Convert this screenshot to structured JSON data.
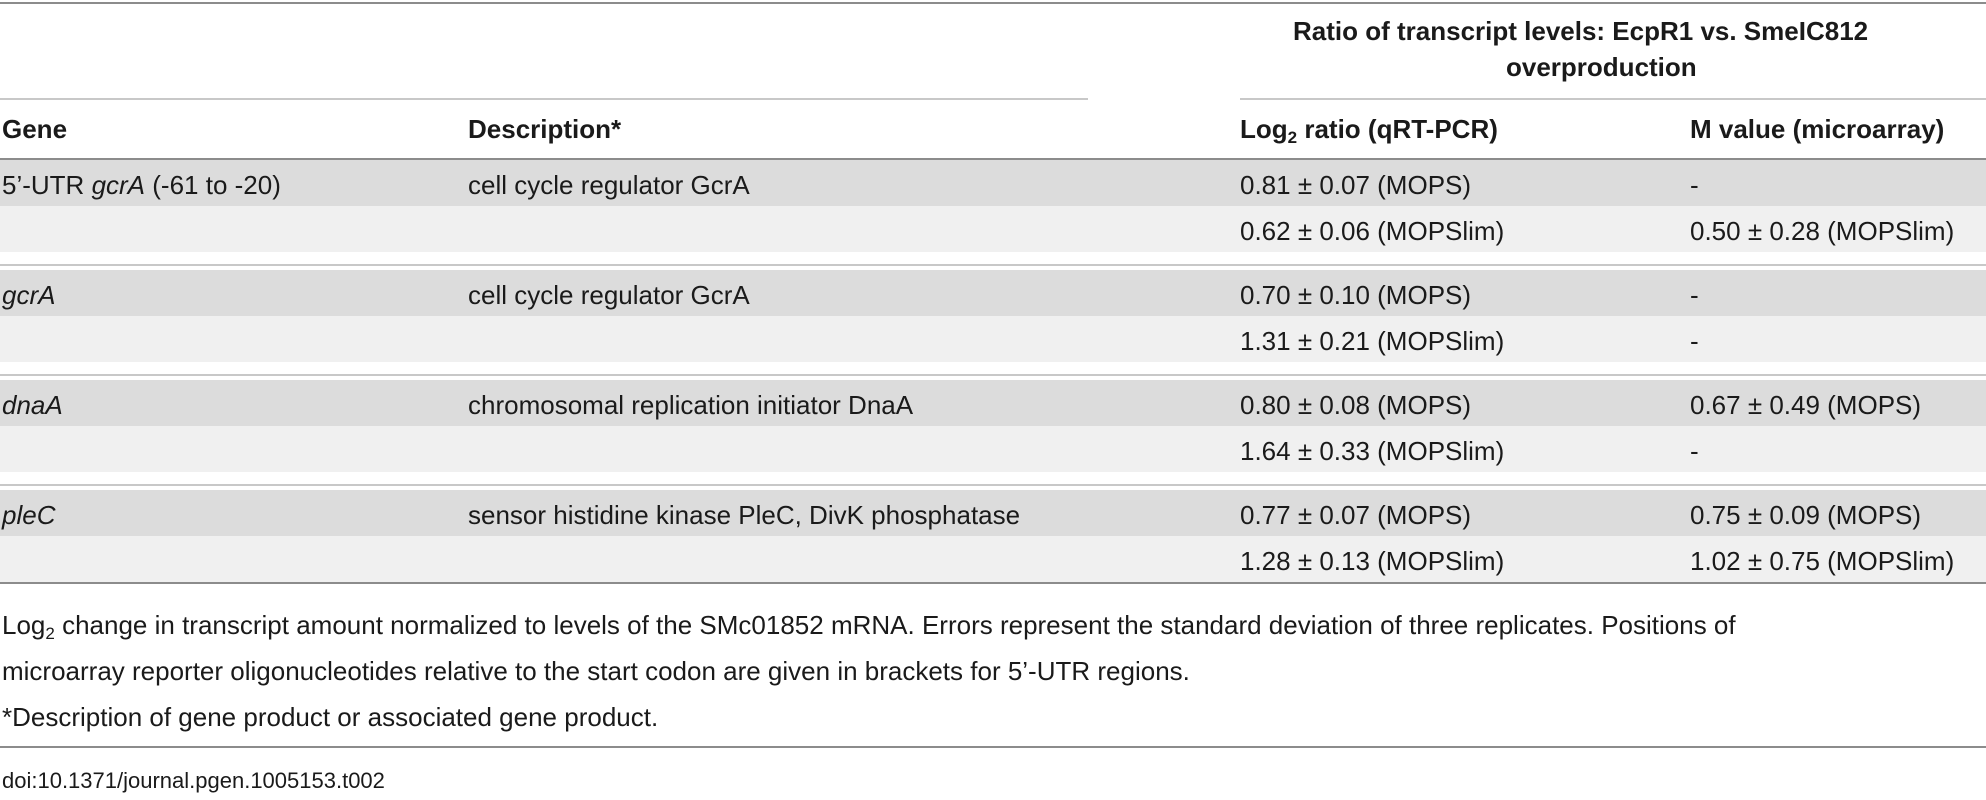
{
  "colors": {
    "band_dark": "#dcdcdc",
    "band_light": "#f0f0f0",
    "rule": "#8c8c8c",
    "text": "#1a1a1a"
  },
  "header": {
    "group_title_line1": "Ratio of transcript levels: EcpR1 vs. SmeIC812",
    "group_title_line2": "overproduction",
    "col_gene": "Gene",
    "col_description": "Description",
    "col_description_mark": "*",
    "col_qrt_prefix": "Log",
    "col_qrt_sub": "2",
    "col_qrt_suffix": " ratio (qRT-PCR)",
    "col_microarray": "M value (microarray)"
  },
  "rows": [
    {
      "gene_prefix": "5’-UTR ",
      "gene_italic": "gcrA",
      "gene_suffix": " (-61 to -20)",
      "description": "cell cycle regulator GcrA",
      "qrt": "0.81 ± 0.07 (MOPS)",
      "micro": "-"
    },
    {
      "gene_prefix": "",
      "gene_italic": "",
      "gene_suffix": "",
      "description": "",
      "qrt": "0.62 ± 0.06 (MOPSlim)",
      "micro": "0.50 ± 0.28 (MOPSlim)"
    },
    {
      "gene_prefix": "",
      "gene_italic": "gcrA",
      "gene_suffix": "",
      "description": "cell cycle regulator GcrA",
      "qrt": "0.70 ± 0.10 (MOPS)",
      "micro": "-"
    },
    {
      "gene_prefix": "",
      "gene_italic": "",
      "gene_suffix": "",
      "description": "",
      "qrt": "1.31 ± 0.21 (MOPSlim)",
      "micro": "-"
    },
    {
      "gene_prefix": "",
      "gene_italic": "dnaA",
      "gene_suffix": "",
      "description": "chromosomal replication initiator DnaA",
      "qrt": "0.80 ± 0.08 (MOPS)",
      "micro": "0.67 ± 0.49 (MOPS)"
    },
    {
      "gene_prefix": "",
      "gene_italic": "",
      "gene_suffix": "",
      "description": "",
      "qrt": "1.64 ± 0.33 (MOPSlim)",
      "micro": "-"
    },
    {
      "gene_prefix": "",
      "gene_italic": "pleC",
      "gene_suffix": "",
      "description": "sensor histidine kinase PleC, DivK phosphatase",
      "qrt": "0.77 ± 0.07 (MOPS)",
      "micro": "0.75 ± 0.09 (MOPS)"
    },
    {
      "gene_prefix": "",
      "gene_italic": "",
      "gene_suffix": "",
      "description": "",
      "qrt": "1.28 ± 0.13 (MOPSlim)",
      "micro": "1.02 ± 0.75 (MOPSlim)"
    }
  ],
  "footnotes": {
    "line1_prefix": "Log",
    "line1_sub": "2",
    "line1_rest": " change in transcript amount normalized to levels of the SMc01852 mRNA. Errors represent the standard deviation of three replicates. Positions of",
    "line2": "microarray reporter oligonucleotides relative to the start codon are given in brackets for 5’-UTR regions.",
    "line3": "*Description of gene product or associated gene product."
  },
  "doi": "doi:10.1371/journal.pgen.1005153.t002"
}
